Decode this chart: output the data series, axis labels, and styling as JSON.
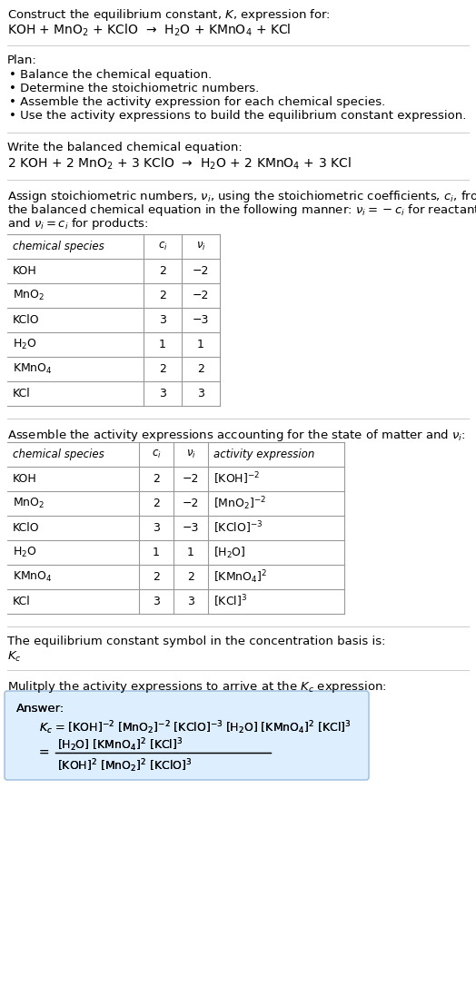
{
  "title_line1": "Construct the equilibrium constant, $K$, expression for:",
  "title_line2": "KOH + MnO$_2$ + KClO  →  H$_2$O + KMnO$_4$ + KCl",
  "plan_header": "Plan:",
  "plan_items": [
    "• Balance the chemical equation.",
    "• Determine the stoichiometric numbers.",
    "• Assemble the activity expression for each chemical species.",
    "• Use the activity expressions to build the equilibrium constant expression."
  ],
  "balanced_header": "Write the balanced chemical equation:",
  "balanced_eq": "2 KOH + 2 MnO$_2$ + 3 KClO  →  H$_2$O + 2 KMnO$_4$ + 3 KCl",
  "stoich_lines": [
    "Assign stoichiometric numbers, $\\nu_i$, using the stoichiometric coefficients, $c_i$, from",
    "the balanced chemical equation in the following manner: $\\nu_i = -c_i$ for reactants",
    "and $\\nu_i = c_i$ for products:"
  ],
  "table1_headers": [
    "chemical species",
    "$c_i$",
    "$\\nu_i$"
  ],
  "table1_data": [
    [
      "KOH",
      "2",
      "−2"
    ],
    [
      "MnO$_2$",
      "2",
      "−2"
    ],
    [
      "KClO",
      "3",
      "−3"
    ],
    [
      "H$_2$O",
      "1",
      "1"
    ],
    [
      "KMnO$_4$",
      "2",
      "2"
    ],
    [
      "KCl",
      "3",
      "3"
    ]
  ],
  "assemble_header": "Assemble the activity expressions accounting for the state of matter and $\\nu_i$:",
  "table2_headers": [
    "chemical species",
    "$c_i$",
    "$\\nu_i$",
    "activity expression"
  ],
  "table2_data": [
    [
      "KOH",
      "2",
      "−2",
      "[KOH]$^{-2}$"
    ],
    [
      "MnO$_2$",
      "2",
      "−2",
      "[MnO$_2$]$^{-2}$"
    ],
    [
      "KClO",
      "3",
      "−3",
      "[KClO]$^{-3}$"
    ],
    [
      "H$_2$O",
      "1",
      "1",
      "[H$_2$O]"
    ],
    [
      "KMnO$_4$",
      "2",
      "2",
      "[KMnO$_4$]$^2$"
    ],
    [
      "KCl",
      "3",
      "3",
      "[KCl]$^3$"
    ]
  ],
  "kc_symbol_header": "The equilibrium constant symbol in the concentration basis is:",
  "kc_symbol": "$K_c$",
  "multiply_header": "Mulitply the activity expressions to arrive at the $K_c$ expression:",
  "answer_label": "Answer:",
  "answer_line1": "$K_c$ = [KOH]$^{-2}$ [MnO$_2$]$^{-2}$ [KClO]$^{-3}$ [H$_2$O] [KMnO$_4$]$^2$ [KCl]$^3$",
  "answer_num": "[H$_2$O] [KMnO$_4$]$^2$ [KCl]$^3$",
  "answer_den": "[KOH]$^2$ [MnO$_2$]$^2$ [KClO]$^3$",
  "bg_color": "#ffffff",
  "answer_box_color": "#ddeeff",
  "answer_box_border": "#99bbdd",
  "text_color": "#000000",
  "table_line_color": "#999999",
  "sep_line_color": "#cccccc",
  "font_size": 9.5,
  "small_font": 9.0
}
